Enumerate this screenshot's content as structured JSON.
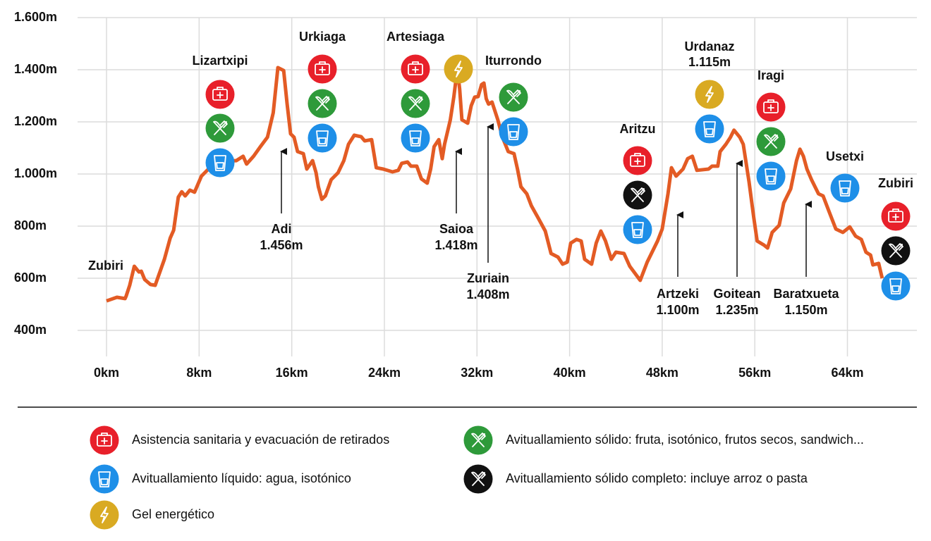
{
  "chart_data": {
    "type": "line",
    "x": [
      0,
      0.9,
      1.6,
      1.7,
      2.0,
      2.4,
      2.8,
      3.0,
      3.3,
      3.8,
      4.2,
      5.0,
      5.5,
      5.8,
      6.2,
      6.5,
      6.8,
      7.2,
      7.6,
      8.2,
      8.8,
      10.3,
      11.2,
      11.8,
      12.1,
      12.7,
      13.3,
      13.9,
      14.4,
      14.8,
      15.3,
      15.6,
      15.9,
      16.2,
      16.5,
      17.0,
      17.3,
      17.8,
      18.1,
      18.3,
      18.6,
      18.9,
      19.4,
      20.0,
      20.5,
      20.9,
      21.4,
      22.0,
      22.3,
      22.9,
      23.3,
      23.9,
      24.7,
      25.2,
      25.5,
      26.0,
      26.3,
      26.8,
      27.2,
      27.7,
      28.0,
      28.3,
      28.7,
      29.0,
      29.2,
      29.7,
      30.0,
      30.3,
      30.5,
      30.7,
      31.2,
      31.5,
      31.8,
      32.1,
      32.4,
      32.6,
      32.8,
      33.0,
      33.3,
      33.8,
      34.2,
      34.7,
      35.2,
      35.5,
      35.8,
      36.3,
      36.7,
      37.3,
      37.9,
      38.4,
      39.0,
      39.4,
      39.8,
      40.1,
      40.6,
      41.0,
      41.3,
      41.9,
      42.3,
      42.7,
      43.1,
      43.6,
      44.0,
      44.7,
      45.2,
      46.1,
      46.7,
      47.6,
      48.0,
      48.5,
      48.8,
      49.2,
      49.8,
      50.2,
      50.6,
      51.0,
      52.0,
      52.3,
      52.8,
      53.0,
      53.5,
      53.9,
      54.2,
      54.7,
      55.0,
      55.5,
      55.9,
      56.2,
      56.8,
      57.1,
      57.5,
      58.1,
      58.5,
      59.1,
      59.6,
      59.9,
      60.2,
      60.5,
      60.9,
      61.5,
      61.9,
      62.4,
      63.0,
      63.6,
      64.2,
      64.7,
      65.2,
      65.6,
      66.0,
      66.2,
      66.7,
      67.0
    ],
    "values": [
      513,
      527,
      522,
      532,
      573,
      646,
      624,
      627,
      595,
      576,
      573,
      673,
      754,
      784,
      911,
      932,
      916,
      938,
      930,
      992,
      1019,
      1051,
      1051,
      1068,
      1038,
      1068,
      1105,
      1141,
      1235,
      1408,
      1397,
      1268,
      1154,
      1141,
      1086,
      1078,
      1019,
      1051,
      1005,
      951,
      903,
      916,
      978,
      1005,
      1051,
      1114,
      1149,
      1143,
      1127,
      1132,
      1024,
      1019,
      1008,
      1014,
      1041,
      1046,
      1030,
      1030,
      981,
      965,
      1019,
      1105,
      1132,
      1059,
      1114,
      1208,
      1295,
      1403,
      1327,
      1208,
      1195,
      1262,
      1295,
      1297,
      1343,
      1349,
      1289,
      1268,
      1276,
      1208,
      1141,
      1086,
      1078,
      1019,
      951,
      924,
      878,
      830,
      781,
      695,
      681,
      654,
      662,
      735,
      749,
      743,
      673,
      654,
      735,
      781,
      743,
      673,
      700,
      695,
      646,
      592,
      662,
      743,
      789,
      924,
      1024,
      992,
      1019,
      1059,
      1068,
      1014,
      1019,
      1030,
      1030,
      1086,
      1114,
      1141,
      1168,
      1141,
      1114,
      970,
      835,
      743,
      727,
      716,
      776,
      803,
      889,
      943,
      1051,
      1095,
      1068,
      1019,
      978,
      924,
      916,
      857,
      789,
      776,
      797,
      762,
      749,
      700,
      689,
      651,
      657,
      600
    ],
    "color": "#e35b24",
    "xlim": [
      -2.5,
      70
    ],
    "ylim": [
      300,
      1600
    ],
    "xticks": [
      {
        "value": 0,
        "label": "0km"
      },
      {
        "value": 8,
        "label": "8km"
      },
      {
        "value": 16,
        "label": "16km"
      },
      {
        "value": 24,
        "label": "24km"
      },
      {
        "value": 32,
        "label": "32km"
      },
      {
        "value": 40,
        "label": "40km"
      },
      {
        "value": 48,
        "label": "48km"
      },
      {
        "value": 56,
        "label": "56km"
      },
      {
        "value": 64,
        "label": "64km"
      }
    ],
    "yticks": [
      {
        "value": 400,
        "label": "400m"
      },
      {
        "value": 600,
        "label": "600m"
      },
      {
        "value": 800,
        "label": "800m"
      },
      {
        "value": 1000,
        "label": "1.000m"
      },
      {
        "value": 1200,
        "label": "1.200m"
      },
      {
        "value": 1400,
        "label": "1.400m"
      },
      {
        "value": 1600,
        "label": "1.600m"
      }
    ],
    "grid": true,
    "stations": [
      {
        "name": "Zubiri",
        "icons": []
      },
      {
        "name": "Lizartxipi",
        "icons": [
          "#e8202a",
          "#2e9a3a",
          "#1e8fe8"
        ]
      },
      {
        "name": "Urkiaga",
        "icons": [
          "#e8202a",
          "#2e9a3a",
          "#1e8fe8"
        ]
      },
      {
        "name": "Artesiaga",
        "icons": [
          "#e8202a",
          "#2e9a3a",
          "#1e8fe8"
        ]
      },
      {
        "name": "Iturrondo",
        "icons": [
          "#2e9a3a",
          "#1e8fe8"
        ]
      },
      {
        "name": "Aritzu",
        "icons": [
          "#e8202a",
          "#111111",
          "#1e8fe8"
        ]
      },
      {
        "name": "Urdanaz",
        "elevation": "1.115m",
        "icons": [
          "#d9aa22",
          "#1e8fe8"
        ]
      },
      {
        "name": "Iragi",
        "icons": [
          "#e8202a",
          "#2e9a3a",
          "#1e8fe8"
        ]
      },
      {
        "name": "Usetxi",
        "icons": [
          "#1e8fe8"
        ]
      },
      {
        "name": "Zubiri",
        "icons": [
          "#e8202a",
          "#111111",
          "#1e8fe8"
        ]
      }
    ],
    "peaks": [
      {
        "name": "Adi",
        "elevation": "1.456m"
      },
      {
        "name": "Saioa",
        "elevation": "1.418m"
      },
      {
        "name": "Zuriain",
        "elevation": "1.408m"
      },
      {
        "name": "Artzeki",
        "elevation": "1.100m"
      },
      {
        "name": "Goitean",
        "elevation": "1.235m"
      },
      {
        "name": "Baratxueta",
        "elevation": "1.150m"
      }
    ],
    "gel": {
      "color": "#d9aa22"
    },
    "legend": [
      {
        "color": "#e8202a",
        "label": "Asistencia sanitaria y evacuación de retirados"
      },
      {
        "color": "#1e8fe8",
        "label": "Avituallamiento líquido: agua, isotónico"
      },
      {
        "color": "#d9aa22",
        "label": "Gel energético"
      },
      {
        "color": "#2e9a3a",
        "label": "Avituallamiento sólido: fruta, isotónico, frutos secos, sandwich..."
      },
      {
        "color": "#111111",
        "label": "Avituallamiento sólido completo: incluye arroz o pasta"
      }
    ]
  }
}
